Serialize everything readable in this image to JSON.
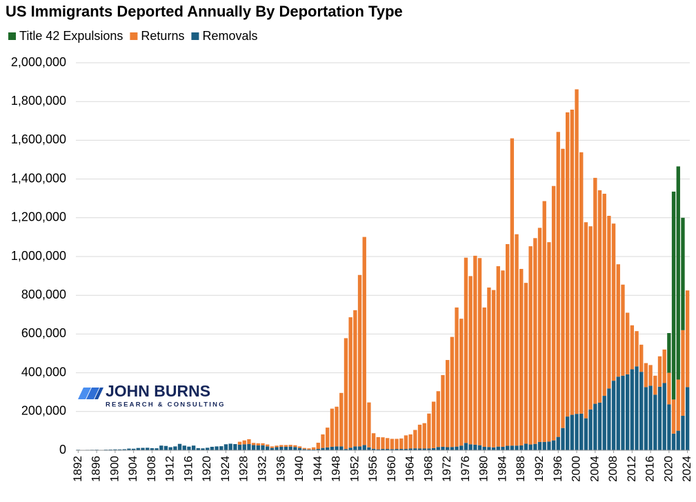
{
  "chart_data": {
    "type": "stacked_bar",
    "title": "US Immigrants Deported Annually By Deportation Type",
    "logo": {
      "name": "JOHN BURNS",
      "tagline": "RESEARCH & CONSULTING"
    },
    "x": [
      1892,
      1893,
      1894,
      1895,
      1896,
      1897,
      1898,
      1899,
      1900,
      1901,
      1902,
      1903,
      1904,
      1905,
      1906,
      1907,
      1908,
      1909,
      1910,
      1911,
      1912,
      1913,
      1914,
      1915,
      1916,
      1917,
      1918,
      1919,
      1920,
      1921,
      1922,
      1923,
      1924,
      1925,
      1926,
      1927,
      1928,
      1929,
      1930,
      1931,
      1932,
      1933,
      1934,
      1935,
      1936,
      1937,
      1938,
      1939,
      1940,
      1941,
      1942,
      1943,
      1944,
      1945,
      1946,
      1947,
      1948,
      1949,
      1950,
      1951,
      1952,
      1953,
      1954,
      1955,
      1956,
      1957,
      1958,
      1959,
      1960,
      1961,
      1962,
      1963,
      1964,
      1965,
      1966,
      1967,
      1968,
      1969,
      1970,
      1971,
      1972,
      1973,
      1974,
      1975,
      1976,
      1977,
      1978,
      1979,
      1980,
      1981,
      1982,
      1983,
      1984,
      1985,
      1986,
      1987,
      1988,
      1989,
      1990,
      1991,
      1992,
      1993,
      1994,
      1995,
      1996,
      1997,
      1998,
      1999,
      2000,
      2001,
      2002,
      2003,
      2004,
      2005,
      2006,
      2007,
      2008,
      2009,
      2010,
      2011,
      2012,
      2013,
      2014,
      2015,
      2016,
      2017,
      2018,
      2019,
      2020,
      2021,
      2022,
      2023,
      2024
    ],
    "xlim": [
      1891.5,
      2024.5
    ],
    "xticks": [
      1892,
      1896,
      1900,
      1904,
      1908,
      1912,
      1916,
      1920,
      1924,
      1928,
      1932,
      1936,
      1940,
      1944,
      1948,
      1952,
      1956,
      1960,
      1964,
      1968,
      1972,
      1976,
      1980,
      1984,
      1988,
      1992,
      1996,
      2000,
      2004,
      2008,
      2012,
      2016,
      2020,
      2024
    ],
    "ylim": [
      0,
      2000000
    ],
    "yticks": [
      0,
      {
        "value": 200000,
        "label": "200,000"
      },
      {
        "value": 400000,
        "label": "400,000"
      },
      {
        "value": 600000,
        "label": "600,000"
      },
      {
        "value": 800000,
        "label": "800,000"
      },
      {
        "value": 1000000,
        "label": "1,000,000"
      },
      {
        "value": 1200000,
        "label": "1,200,000"
      },
      {
        "value": 1400000,
        "label": "1,400,000"
      },
      {
        "value": 1600000,
        "label": "1,600,000"
      },
      {
        "value": 1800000,
        "label": "1,800,000"
      },
      {
        "value": 2000000,
        "label": "2,000,000"
      }
    ],
    "grid": true,
    "legend": "top-left",
    "series": [
      {
        "name": "Title 42 Expulsions",
        "color": "#1e6b2a",
        "values": [
          null,
          null,
          null,
          null,
          null,
          null,
          null,
          null,
          null,
          null,
          null,
          null,
          null,
          null,
          null,
          null,
          null,
          null,
          null,
          null,
          null,
          null,
          null,
          null,
          null,
          null,
          null,
          null,
          null,
          null,
          null,
          null,
          null,
          null,
          null,
          null,
          null,
          null,
          null,
          null,
          null,
          null,
          null,
          null,
          null,
          null,
          null,
          null,
          null,
          null,
          null,
          null,
          null,
          null,
          null,
          null,
          null,
          null,
          null,
          null,
          null,
          null,
          null,
          null,
          null,
          null,
          null,
          null,
          null,
          null,
          null,
          null,
          null,
          null,
          null,
          null,
          null,
          null,
          null,
          null,
          null,
          null,
          null,
          null,
          null,
          null,
          null,
          null,
          null,
          null,
          null,
          null,
          null,
          null,
          null,
          null,
          null,
          null,
          null,
          null,
          null,
          null,
          null,
          null,
          null,
          null,
          null,
          null,
          null,
          null,
          null,
          null,
          null,
          null,
          null,
          null,
          null,
          null,
          null,
          null,
          null,
          null,
          null,
          null,
          null,
          null,
          null,
          null,
          205000,
          1073000,
          1100000,
          580000,
          null
        ]
      },
      {
        "name": "Returns",
        "color": "#ed7d31",
        "values": [
          0,
          0,
          0,
          0,
          0,
          0,
          0,
          0,
          0,
          0,
          0,
          0,
          0,
          0,
          0,
          0,
          0,
          0,
          0,
          0,
          0,
          0,
          0,
          0,
          0,
          0,
          0,
          0,
          0,
          0,
          0,
          0,
          0,
          0,
          0,
          15000,
          20000,
          25000,
          11000,
          11000,
          10000,
          10000,
          8000,
          8000,
          9000,
          9000,
          9000,
          9000,
          8000,
          6000,
          6000,
          11000,
          32000,
          70000,
          102000,
          197000,
          205000,
          276000,
          572000,
          673000,
          703000,
          885000,
          1074000,
          232000,
          80000,
          63000,
          60000,
          56000,
          53000,
          52000,
          54000,
          70000,
          73000,
          95000,
          123000,
          131000,
          180000,
          240000,
          288000,
          370000,
          450000,
          568000,
          718000,
          655000,
          956000,
          868000,
          975000,
          966000,
          719000,
          823000,
          812000,
          931000,
          910000,
          1041000,
          1586000,
          1091000,
          911000,
          830000,
          1023000,
          1062000,
          1105000,
          1243000,
          1029000,
          1313000,
          1574000,
          1441000,
          1570000,
          1575000,
          1675000,
          1349000,
          1012000,
          945000,
          1166000,
          1096000,
          1043000,
          891000,
          811000,
          580000,
          470000,
          318000,
          227000,
          182000,
          140000,
          124000,
          107000,
          98000,
          157000,
          173000,
          163000,
          176000,
          264000,
          442000,
          499000
        ]
      },
      {
        "name": "Removals",
        "color": "#1a5e82",
        "values": [
          2801,
          1630,
          2167,
          2596,
          3037,
          1880,
          3229,
          3798,
          4602,
          4500,
          5500,
          8773,
          7994,
          11879,
          12432,
          13064,
          10902,
          10411,
          24270,
          22349,
          16057,
          19938,
          33041,
          24111,
          18867,
          24255,
          11135,
          10000,
          13000,
          18000,
          20000,
          21000,
          31000,
          34000,
          32000,
          29000,
          31000,
          32000,
          27000,
          25000,
          26000,
          20000,
          12000,
          16000,
          18000,
          18000,
          19000,
          17000,
          12000,
          6000,
          4000,
          4000,
          7000,
          12000,
          15000,
          18000,
          20000,
          20000,
          6600,
          13500,
          20000,
          19800,
          27000,
          15000,
          8000,
          5000,
          7000,
          7000,
          6000,
          7000,
          7000,
          7000,
          9000,
          10000,
          9000,
          9000,
          9500,
          11000,
          17000,
          18000,
          16000,
          17000,
          19000,
          24000,
          38000,
          31000,
          29000,
          26000,
          18000,
          17000,
          15000,
          19000,
          18000,
          23000,
          24000,
          24000,
          25000,
          34000,
          30000,
          33000,
          43000,
          43000,
          45000,
          51000,
          69000,
          115000,
          174000,
          183000,
          188000,
          189000,
          165000,
          211000,
          240000,
          246000,
          281000,
          319000,
          359000,
          380000,
          385000,
          392000,
          418000,
          433000,
          405000,
          326000,
          333000,
          287000,
          328000,
          347000,
          237000,
          86000,
          101000,
          178000,
          326000
        ]
      }
    ]
  }
}
